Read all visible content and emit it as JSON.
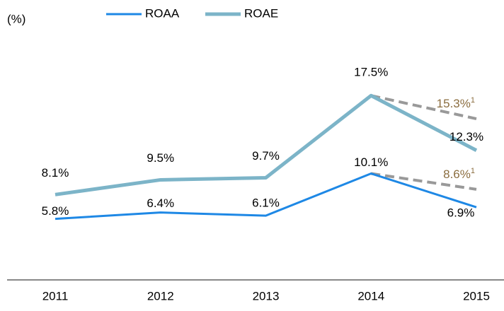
{
  "chart_data": {
    "type": "line",
    "y_label": "(%)",
    "categories": [
      "2011",
      "2012",
      "2013",
      "2014",
      "2015"
    ],
    "ylim": [
      0,
      20
    ],
    "series": [
      {
        "name": "ROAA",
        "color": "#1e88e5",
        "values": [
          5.8,
          6.4,
          6.1,
          10.1,
          6.9
        ],
        "value_labels": [
          "5.8%",
          "6.4%",
          "6.1%",
          "10.1%",
          "6.9%"
        ]
      },
      {
        "name": "ROAE",
        "color": "#7cb4c8",
        "values": [
          8.1,
          9.5,
          9.7,
          17.5,
          12.3
        ],
        "value_labels": [
          "8.1%",
          "9.5%",
          "9.7%",
          "17.5%",
          "12.3%"
        ]
      }
    ],
    "adjusted": [
      {
        "color": "#999999",
        "label_color": "#8b6d3f",
        "values": [
          null,
          null,
          null,
          10.1,
          8.6
        ],
        "value_labels": [
          null,
          null,
          null,
          null,
          "8.6%"
        ],
        "footnote": "1"
      },
      {
        "color": "#999999",
        "label_color": "#8b6d3f",
        "values": [
          null,
          null,
          null,
          17.5,
          15.3
        ],
        "value_labels": [
          null,
          null,
          null,
          null,
          "15.3%"
        ],
        "footnote": "1"
      }
    ]
  }
}
